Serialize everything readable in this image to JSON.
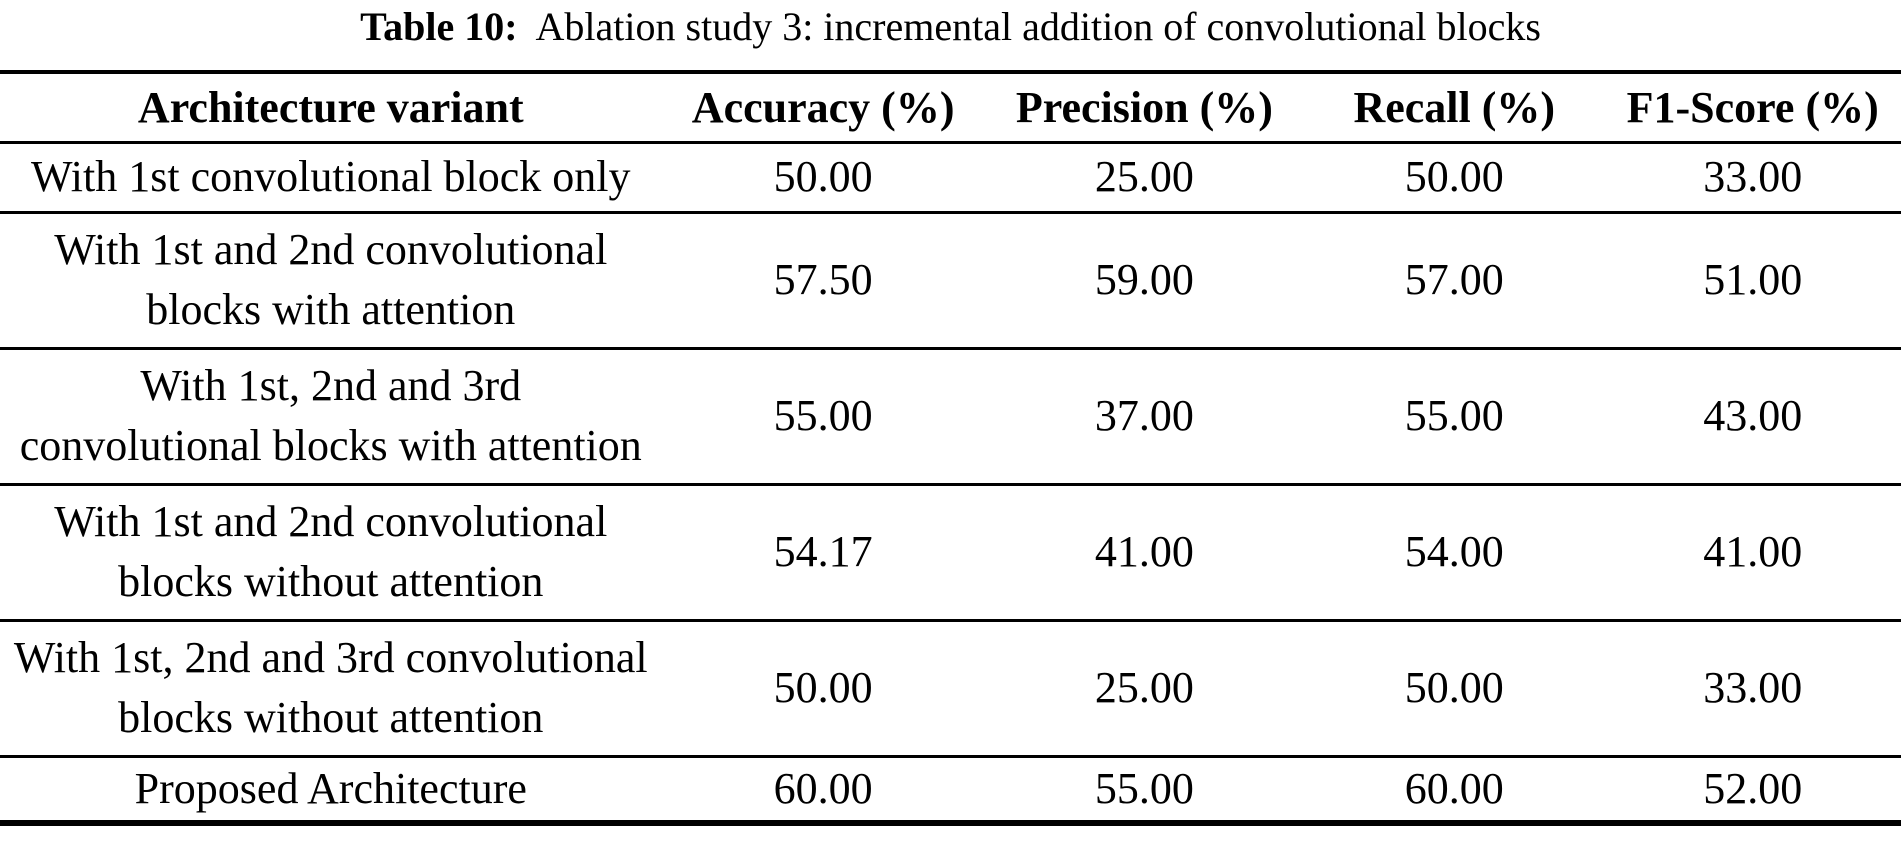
{
  "caption": {
    "label": "Table 10:",
    "text": "Ablation study 3: incremental addition of convolutional blocks"
  },
  "table": {
    "columns": {
      "variant": "Architecture variant",
      "accuracy": "Accuracy (%)",
      "precision": "Precision (%)",
      "recall": "Recall (%)",
      "f1": "F1-Score (%)"
    },
    "rows": [
      {
        "variant": "With 1st convolutional block only",
        "accuracy": "50.00",
        "precision": "25.00",
        "recall": "50.00",
        "f1": "33.00"
      },
      {
        "variant": "With 1st and 2nd convolutional\nblocks with attention",
        "accuracy": "57.50",
        "precision": "59.00",
        "recall": "57.00",
        "f1": "51.00"
      },
      {
        "variant": "With 1st, 2nd and 3rd\nconvolutional blocks with attention",
        "accuracy": "55.00",
        "precision": "37.00",
        "recall": "55.00",
        "f1": "43.00"
      },
      {
        "variant": "With 1st and 2nd convolutional\nblocks without attention",
        "accuracy": "54.17",
        "precision": "41.00",
        "recall": "54.00",
        "f1": "41.00"
      },
      {
        "variant": "With 1st, 2nd and 3rd convolutional\nblocks without attention",
        "accuracy": "50.00",
        "precision": "25.00",
        "recall": "50.00",
        "f1": "33.00"
      },
      {
        "variant": "Proposed Architecture",
        "accuracy": "60.00",
        "precision": "55.00",
        "recall": "60.00",
        "f1": "52.00"
      }
    ]
  },
  "colors": {
    "text": "#000000",
    "background": "#ffffff",
    "rule": "#000000"
  }
}
